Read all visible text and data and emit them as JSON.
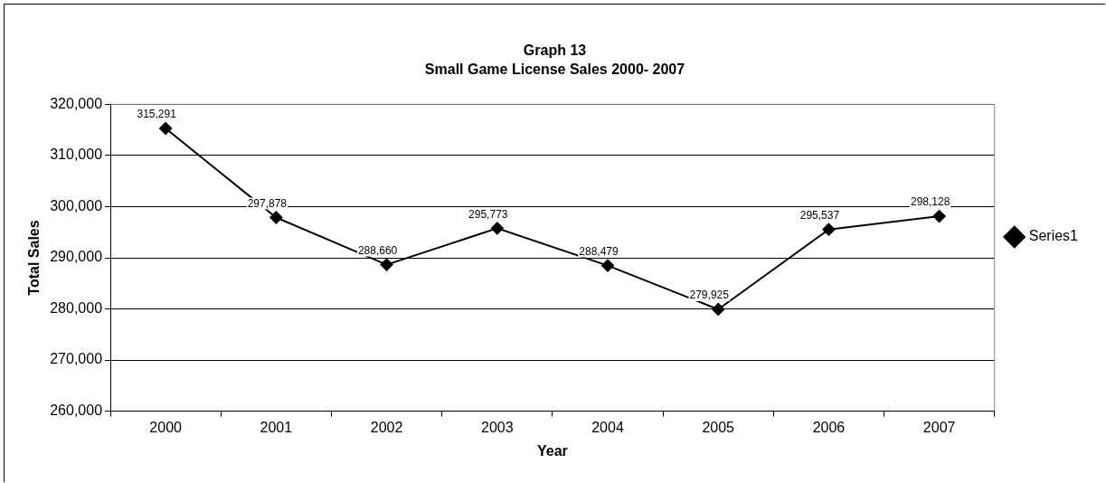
{
  "chart_data": {
    "type": "line",
    "title": "Graph 13",
    "subtitle": "Small Game License Sales 2000- 2007",
    "xlabel": "Year",
    "ylabel": "Total Sales",
    "categories": [
      "2000",
      "2001",
      "2002",
      "2003",
      "2004",
      "2005",
      "2006",
      "2007"
    ],
    "series": [
      {
        "name": "Series1",
        "color": "#000000",
        "values": [
          315291,
          297878,
          288660,
          295773,
          288479,
          279925,
          295537,
          298128
        ],
        "value_labels": [
          "315,291",
          "297,878",
          "288,660",
          "295,773",
          "288,479",
          "279,925",
          "295,537",
          "298,128"
        ]
      }
    ],
    "ylim": [
      260000,
      320000
    ],
    "yticks": [
      {
        "value": 260000,
        "label": "260,000"
      },
      {
        "value": 270000,
        "label": "270,000"
      },
      {
        "value": 280000,
        "label": "280,000"
      },
      {
        "value": 290000,
        "label": "290,000"
      },
      {
        "value": 300000,
        "label": "300,000"
      },
      {
        "value": 310000,
        "label": "310,000"
      },
      {
        "value": 320000,
        "label": "320,000"
      }
    ],
    "grid": "y",
    "legend": "right",
    "marker": "diamond",
    "line_style": "solid"
  }
}
